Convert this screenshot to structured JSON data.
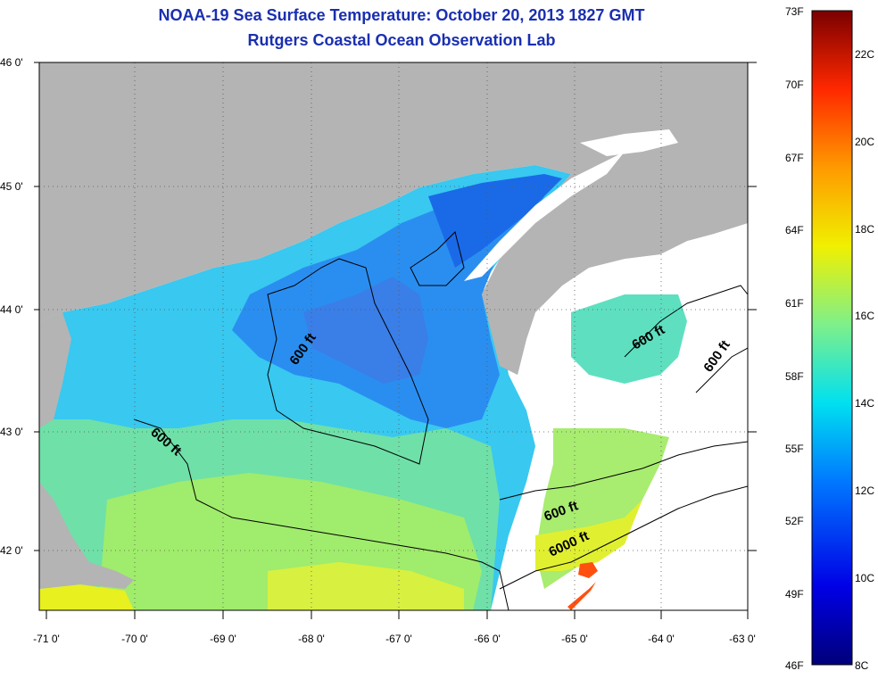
{
  "title": "NOAA-19 Sea Surface Temperature:  October 20, 2013 1827 GMT",
  "subtitle": "Rutgers Coastal Ocean Observation Lab",
  "map": {
    "lon_ticks": [
      "-71 0'",
      "-70 0'",
      "-69 0'",
      "-68 0'",
      "-67 0'",
      "-66 0'",
      "-65 0'",
      "-64 0'",
      "-63 0'"
    ],
    "lat_ticks": [
      "46 0'",
      "45 0'",
      "44 0'",
      "43 0'",
      "42 0'"
    ],
    "lon_range": [
      -71,
      -63
    ],
    "lat_range": [
      41.5,
      46
    ],
    "contour_labels": [
      "600 ft",
      "600 ft",
      "600 ft",
      "600 ft",
      "6000 ft",
      "600 ft"
    ],
    "colors": {
      "land": "#b4b4b4",
      "no_data": "#ffffff"
    }
  },
  "colorbar": {
    "fahrenheit_labels": [
      "73F",
      "70F",
      "67F",
      "64F",
      "61F",
      "58F",
      "55F",
      "52F",
      "49F",
      "46F"
    ],
    "celsius_labels": [
      "22C",
      "20C",
      "18C",
      "16C",
      "14C",
      "12C",
      "10C",
      "8C"
    ],
    "range_c": [
      8,
      23
    ]
  }
}
